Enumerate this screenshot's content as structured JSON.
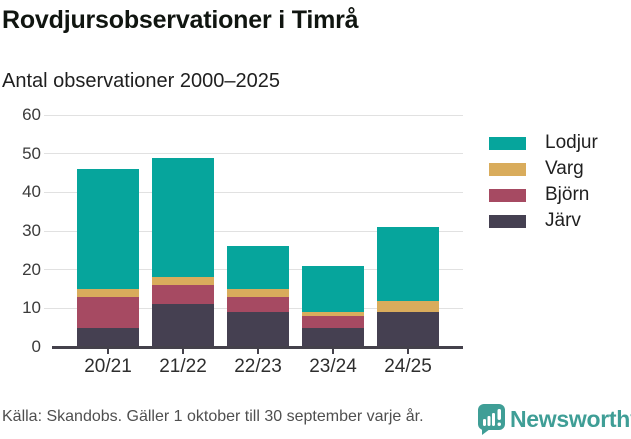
{
  "title": "Rovdjursobservationer i Timrå",
  "subtitle": "Antal observationer 2000–2025",
  "chart_data": {
    "type": "bar",
    "stacked": true,
    "title": "Rovdjursobservationer i Timrå",
    "subtitle": "Antal observationer 2000–2025",
    "categories": [
      "20/21",
      "21/22",
      "22/23",
      "23/24",
      "24/25"
    ],
    "series": [
      {
        "name": "Lodjur",
        "color": "#06a59c",
        "values": [
          31,
          31,
          11,
          12,
          19
        ]
      },
      {
        "name": "Varg",
        "color": "#d9ac5c",
        "values": [
          2,
          2,
          2,
          1,
          3
        ]
      },
      {
        "name": "Björn",
        "color": "#a64a62",
        "values": [
          8,
          5,
          4,
          3,
          0
        ]
      },
      {
        "name": "Järv",
        "color": "#454051",
        "values": [
          5,
          11,
          9,
          5,
          9
        ]
      }
    ],
    "totals": [
      46,
      49,
      26,
      21,
      31
    ],
    "ylim": [
      0,
      60
    ],
    "yticks": [
      0,
      10,
      20,
      30,
      40,
      50,
      60
    ],
    "grid": true,
    "legend_position": "right",
    "stack_order_bottom_to_top": [
      "Järv",
      "Björn",
      "Varg",
      "Lodjur"
    ]
  },
  "footer": {
    "source": "Källa: Skandobs. Gäller 1 oktober till 30 september varje år.",
    "brand": "Newsworthy",
    "brand_icon": "bar-chart-speech-bubble-icon",
    "brand_color": "#3f9e96"
  },
  "colors": {
    "background": "#ffffff",
    "grid": "#e1e1e1",
    "axis": "#44414b",
    "title_text": "#101510",
    "subtitle_text": "#1f1f1f",
    "tick_text": "#3b3b3b",
    "footer_text": "#4f4f4f"
  }
}
